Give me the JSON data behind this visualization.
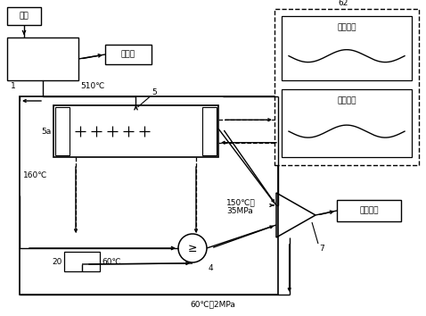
{
  "bg_color": "#ffffff",
  "lc": "#000000",
  "figsize": [
    4.78,
    3.54
  ],
  "dpi": 100,
  "labels": {
    "fuel": "燃料",
    "mechanical": "机械功",
    "summer_cooling": "夏季供冷",
    "winter_heating": "冬季供暖",
    "power_output": "动力输出",
    "temp_510": "510℃",
    "temp_150": "150℃，",
    "temp_35MPa": "35MPa",
    "temp_160": "160℃",
    "temp_60_4": "60℃",
    "temp_60_2MPa": "60℃，2MPa",
    "l1": "1",
    "l4": "4",
    "l5": "5",
    "l5a": "5a",
    "l7": "7",
    "l20": "20",
    "l62": "62"
  }
}
